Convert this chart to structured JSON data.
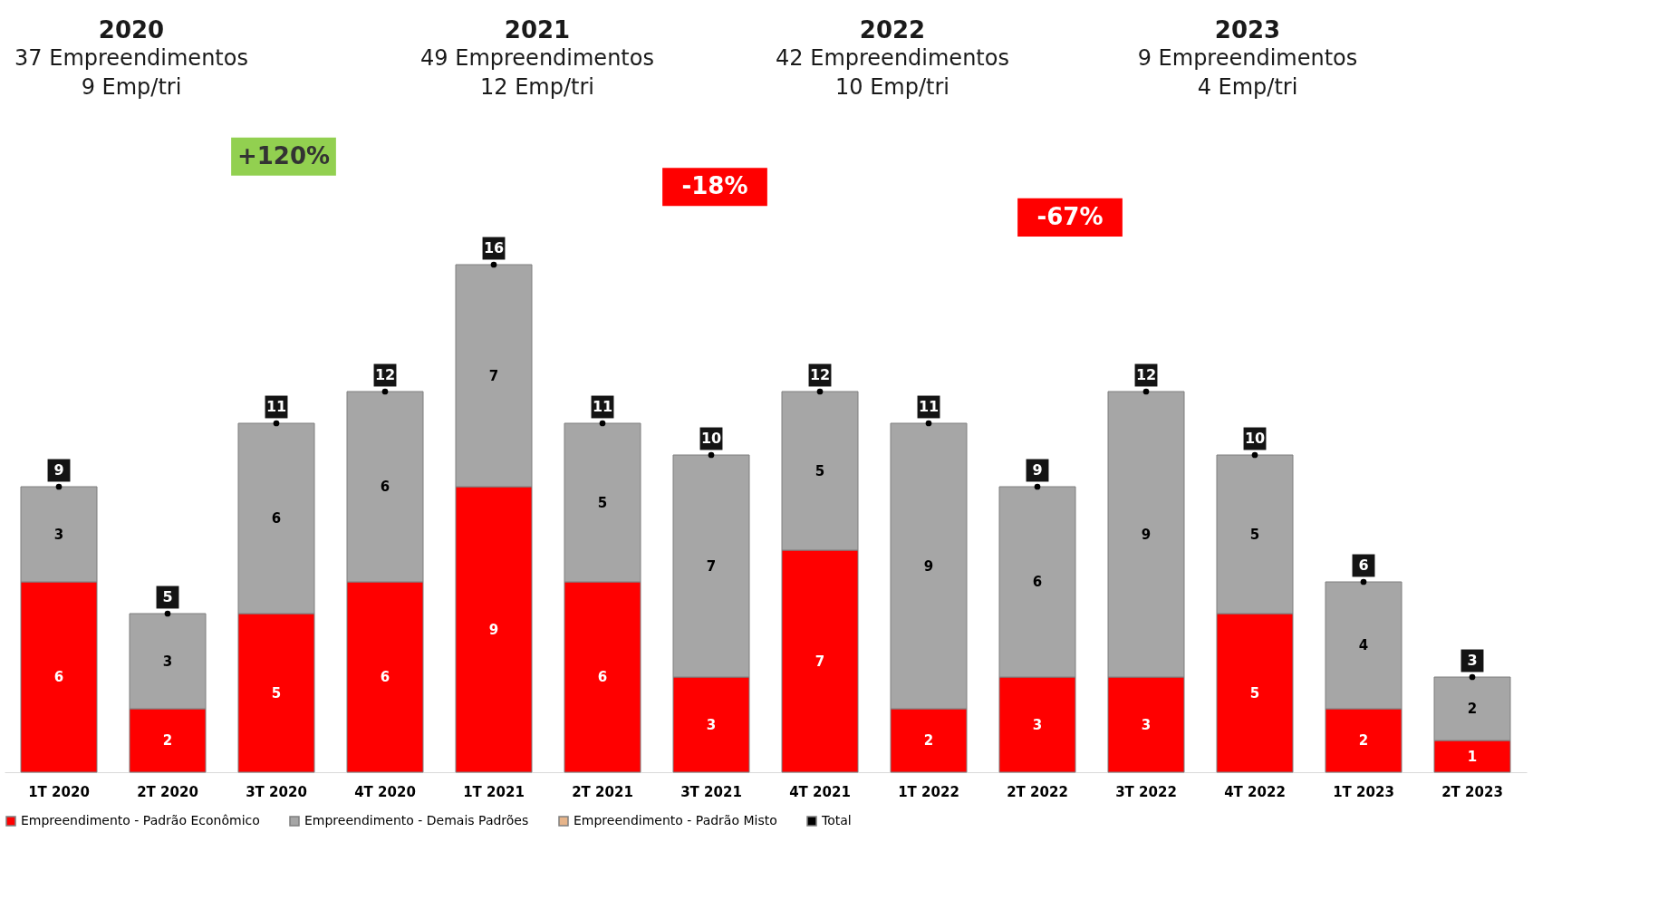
{
  "chart_data": {
    "type": "bar",
    "stacked": true,
    "data_labels": true,
    "legend": "bottom",
    "grid": false,
    "marker": "circle",
    "tick_labels": "x",
    "categories": [
      "1T 2020",
      "2T 2020",
      "3T 2020",
      "4T 2020",
      "1T 2021",
      "2T 2021",
      "3T 2021",
      "4T 2021",
      "1T 2022",
      "2T 2022",
      "3T 2022",
      "4T 2022",
      "1T 2023",
      "2T 2023"
    ],
    "series": [
      {
        "name": "Empreendimento - Padrão Econômico",
        "color": "#ff0000",
        "values": [
          6,
          2,
          5,
          6,
          9,
          6,
          3,
          7,
          2,
          3,
          3,
          5,
          2,
          1
        ]
      },
      {
        "name": "Empreendimento - Demais Padrões",
        "color": "#a6a6a6",
        "values": [
          3,
          3,
          6,
          6,
          7,
          5,
          7,
          5,
          9,
          6,
          9,
          5,
          4,
          2
        ]
      },
      {
        "name": "Empreendimento - Padrão Misto",
        "color": "#e6b48a",
        "values": [
          null,
          null,
          null,
          null,
          null,
          null,
          null,
          null,
          null,
          null,
          null,
          null,
          null,
          null
        ]
      },
      {
        "name": "Total",
        "type": "scatter",
        "color": "#000000",
        "values": [
          9,
          5,
          11,
          12,
          16,
          11,
          10,
          12,
          11,
          9,
          12,
          10,
          6,
          3
        ]
      }
    ],
    "annotations": [
      "2020",
      "37 Empreendimentos",
      "9 Emp/tri",
      "2021",
      "49 Empreendimentos",
      "12 Emp/tri",
      "2022",
      "42 Empreendimentos",
      "10 Emp/tri",
      "2023",
      "9 Empreendimentos",
      "4 Emp/tri",
      "+120%",
      "-18%",
      "-67%"
    ]
  }
}
